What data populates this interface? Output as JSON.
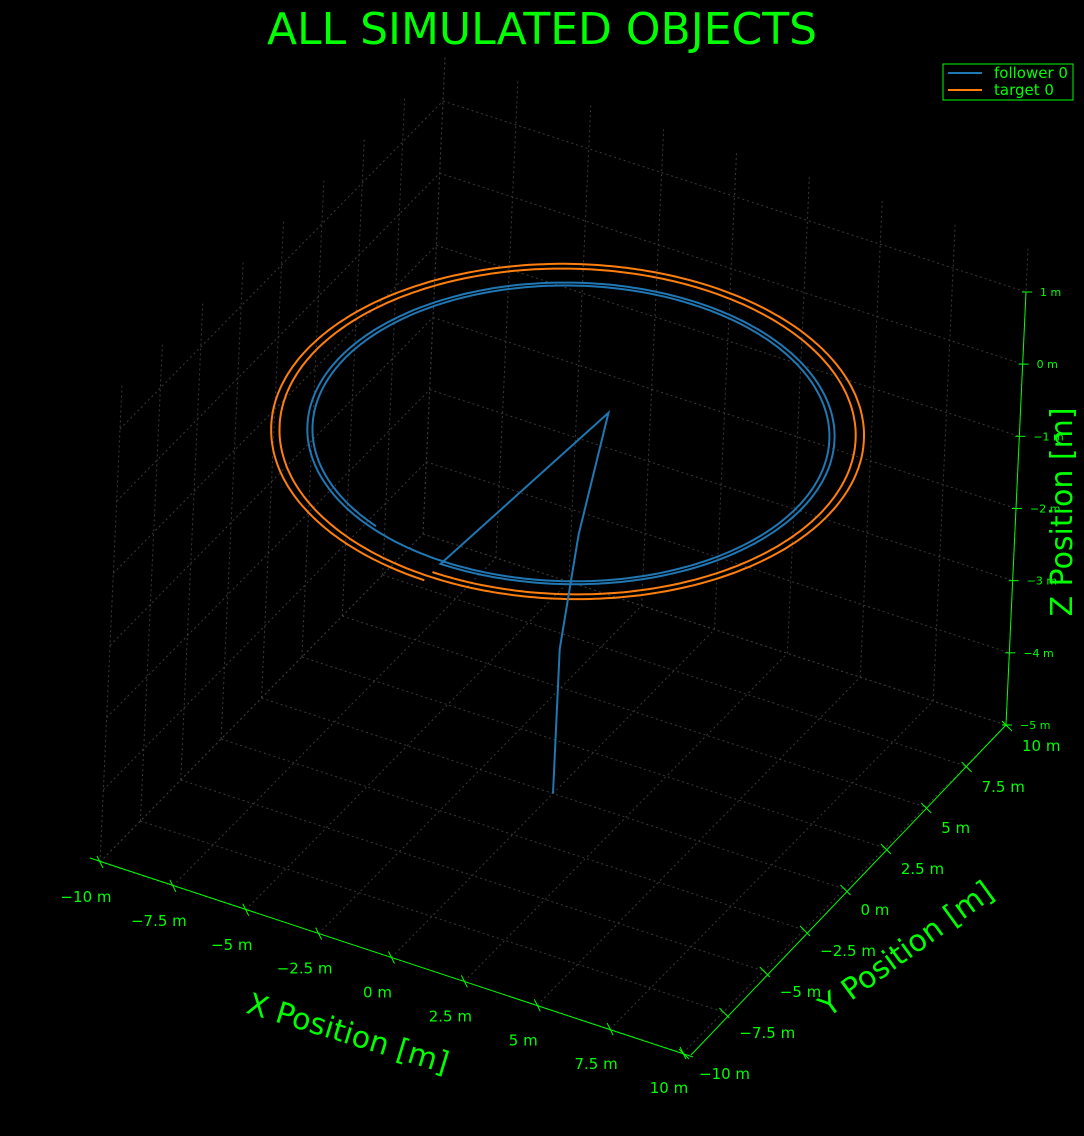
{
  "chart_data": {
    "type": "line",
    "projection": "3d",
    "title": "ALL SIMULATED OBJECTS",
    "xlabel": "X Position [m]",
    "ylabel": "Y Position [m]",
    "zlabel": "Z Position [m]",
    "xlim": [
      -10,
      10
    ],
    "ylim": [
      -10,
      10
    ],
    "zlim": [
      -5,
      1
    ],
    "x_ticks": [
      "−10 m",
      "−7.5 m",
      "−5 m",
      "−2.5 m",
      "0 m",
      "2.5 m",
      "5 m",
      "7.5 m",
      "10 m"
    ],
    "y_ticks": [
      "−10 m",
      "−7.5 m",
      "−5 m",
      "−2.5 m",
      "0 m",
      "2.5 m",
      "5 m",
      "7.5 m",
      "10 m"
    ],
    "z_ticks": [
      "−5 m",
      "−4 m",
      "−3 m",
      "−2 m",
      "−1 m",
      "0 m",
      "1 m"
    ],
    "grid": true,
    "legend_position": "top-right",
    "colors": {
      "background": "#000000",
      "foreground": "#00ff00",
      "grid": "#3a3a3a",
      "follower": "#1f77b4",
      "target": "#ff7f0e"
    },
    "series": [
      {
        "name": "follower 0",
        "color": "#1f77b4",
        "description_points": {
          "ascent": [
            [
              0,
              0,
              -5
            ],
            [
              0,
              0,
              -3
            ],
            [
              0.2,
              0.5,
              -1.5
            ],
            [
              0.5,
              1.5,
              0
            ]
          ],
          "orbit_radius": 8.0,
          "orbit_z": 0
        }
      },
      {
        "name": "target 0",
        "color": "#ff7f0e",
        "description_points": {
          "orbit_radius": 8.5,
          "orbit_z": 0
        }
      }
    ],
    "legend": [
      "follower 0",
      "target 0"
    ]
  }
}
